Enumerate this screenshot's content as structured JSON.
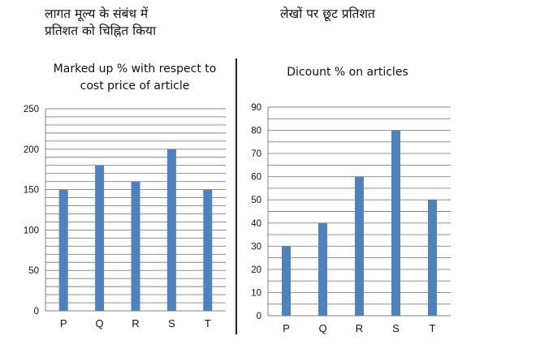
{
  "page": {
    "left_heading_line1": "लागत मूल्य के संबंध में",
    "left_heading_line2": "प्रतिशत को चिह्नित किया",
    "right_heading": "लेखों पर छूट प्रतिशत"
  },
  "colors": {
    "bar": "#4f81bd",
    "grid": "#808080",
    "axis": "#808080"
  },
  "chart_data": [
    {
      "type": "bar",
      "title_line1": "Marked up % with respect to",
      "title_line2": "cost price of article",
      "categories": [
        "P",
        "Q",
        "R",
        "S",
        "T"
      ],
      "values": [
        150,
        180,
        160,
        200,
        150
      ],
      "ylim": [
        0,
        250
      ],
      "yticks": [
        0,
        50,
        100,
        150,
        200,
        250
      ],
      "ytick_labels": [
        "0",
        "50",
        "100",
        "150",
        "200",
        "250"
      ],
      "grid_step": 10,
      "xlabel": "",
      "ylabel": ""
    },
    {
      "type": "bar",
      "title_line1": "Dicount % on articles",
      "categories": [
        "P",
        "Q",
        "R",
        "S",
        "T"
      ],
      "values": [
        30,
        40,
        60,
        80,
        50
      ],
      "ylim": [
        0,
        90
      ],
      "yticks": [
        0,
        10,
        20,
        30,
        40,
        50,
        60,
        70,
        80,
        90
      ],
      "ytick_labels": [
        "0",
        "10",
        "20",
        "30",
        "40",
        "50",
        "60",
        "70",
        "80",
        "90"
      ],
      "grid_step": 5,
      "xlabel": "",
      "ylabel": ""
    }
  ]
}
